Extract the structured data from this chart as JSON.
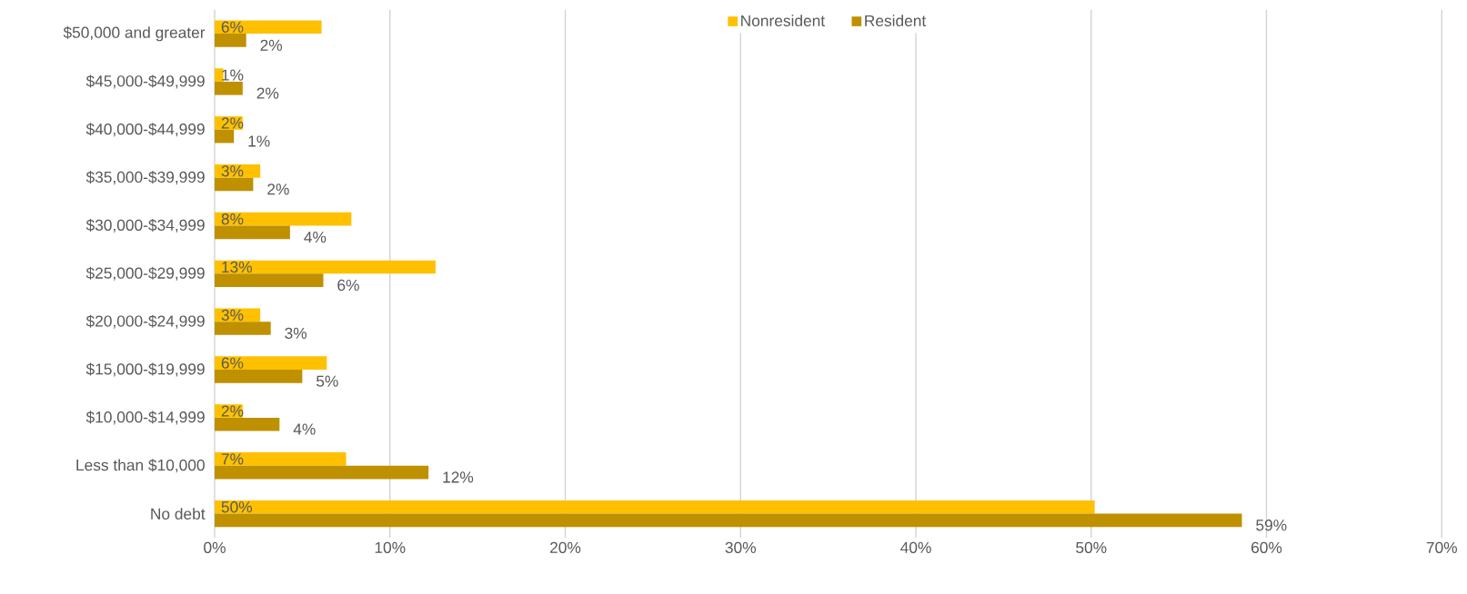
{
  "chart_data": {
    "type": "bar",
    "orientation": "horizontal",
    "categories": [
      "$50,000 and greater",
      "$45,000-$49,999",
      "$40,000-$44,999",
      "$35,000-$39,999",
      "$30,000-$34,999",
      "$25,000-$29,999",
      "$20,000-$24,999",
      "$15,000-$19,999",
      "$10,000-$14,999",
      "Less than $10,000",
      "No debt"
    ],
    "series": [
      {
        "name": "Nonresident",
        "color": "#ffc000",
        "values": [
          6.1,
          0.5,
          1.6,
          2.6,
          7.8,
          12.6,
          2.6,
          6.4,
          1.6,
          7.5,
          50.2
        ],
        "value_labels": [
          "6%",
          "1%",
          "2%",
          "3%",
          "8%",
          "13%",
          "3%",
          "6%",
          "2%",
          "7%",
          "50%"
        ]
      },
      {
        "name": "Resident",
        "color": "#bf9000",
        "values": [
          1.8,
          1.6,
          1.1,
          2.2,
          4.3,
          6.2,
          3.2,
          5.0,
          3.7,
          12.2,
          58.6
        ],
        "value_labels": [
          "2%",
          "2%",
          "1%",
          "2%",
          "4%",
          "6%",
          "3%",
          "5%",
          "4%",
          "12%",
          "59%"
        ]
      }
    ],
    "xlim": [
      0,
      70
    ],
    "xticks": [
      {
        "value": 0,
        "label": "0%"
      },
      {
        "value": 10,
        "label": "10%"
      },
      {
        "value": 20,
        "label": "20%"
      },
      {
        "value": 30,
        "label": "30%"
      },
      {
        "value": 40,
        "label": "40%"
      },
      {
        "value": 50,
        "label": "50%"
      },
      {
        "value": 60,
        "label": "60%"
      },
      {
        "value": 70,
        "label": "70%"
      }
    ],
    "grid": "x",
    "legend": "top"
  }
}
